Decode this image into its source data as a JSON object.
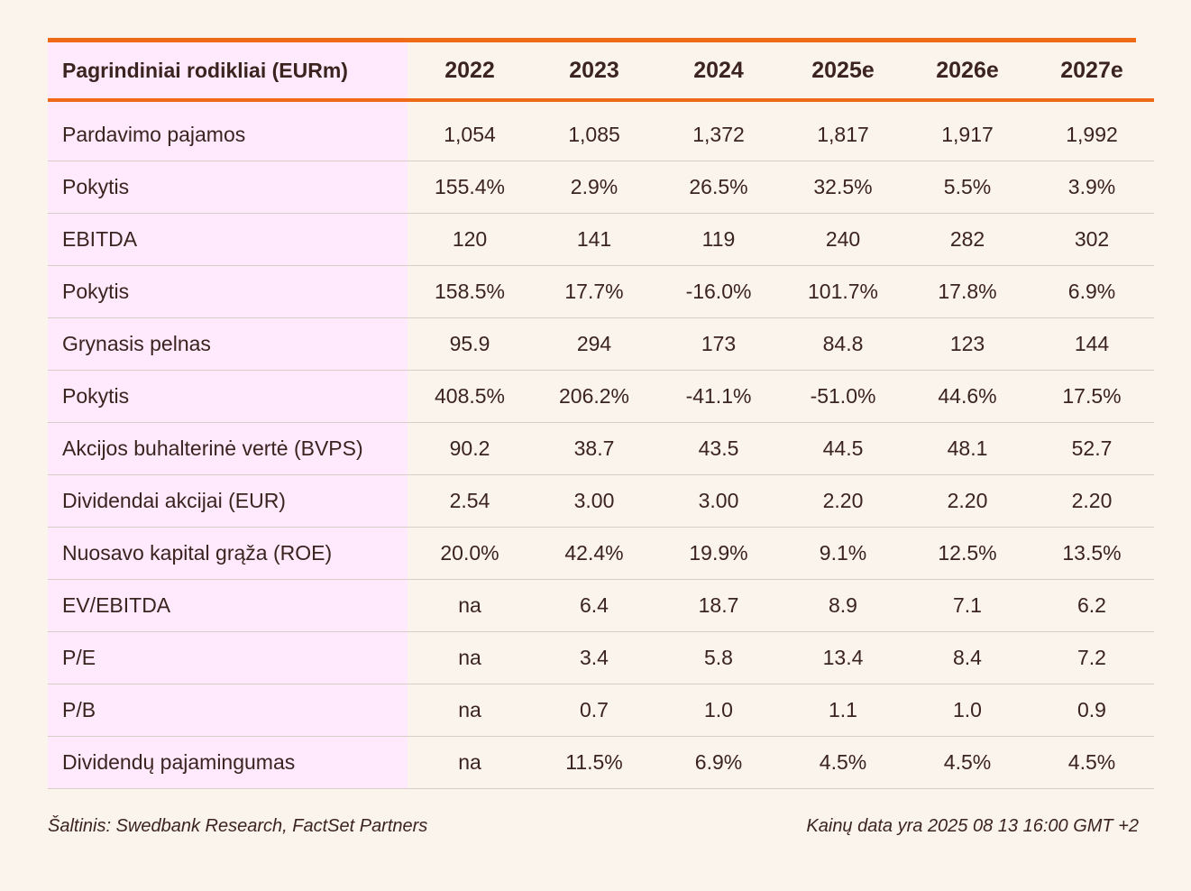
{
  "table": {
    "header_label": "Pagrindiniai rodikliai (EURm)",
    "years": [
      "2022",
      "2023",
      "2024",
      "2025e",
      "2026e",
      "2027e"
    ],
    "rows": [
      {
        "label": "Pardavimo pajamos",
        "values": [
          "1,054",
          "1,085",
          "1,372",
          "1,817",
          "1,917",
          "1,992"
        ]
      },
      {
        "label": "Pokytis",
        "values": [
          "155.4%",
          "2.9%",
          "26.5%",
          "32.5%",
          "5.5%",
          "3.9%"
        ]
      },
      {
        "label": "EBITDA",
        "values": [
          "120",
          "141",
          "119",
          "240",
          "282",
          "302"
        ]
      },
      {
        "label": "Pokytis",
        "values": [
          "158.5%",
          "17.7%",
          "-16.0%",
          "101.7%",
          "17.8%",
          "6.9%"
        ]
      },
      {
        "label": "Grynasis pelnas",
        "values": [
          "95.9",
          "294",
          "173",
          "84.8",
          "123",
          "144"
        ]
      },
      {
        "label": "Pokytis",
        "values": [
          "408.5%",
          "206.2%",
          "-41.1%",
          "-51.0%",
          "44.6%",
          "17.5%"
        ]
      },
      {
        "label": "Akcijos buhalterinė vertė (BVPS)",
        "values": [
          "90.2",
          "38.7",
          "43.5",
          "44.5",
          "48.1",
          "52.7"
        ]
      },
      {
        "label": "Dividendai akcijai (EUR)",
        "values": [
          "2.54",
          "3.00",
          "3.00",
          "2.20",
          "2.20",
          "2.20"
        ]
      },
      {
        "label": "Nuosavo kapital grąža (ROE)",
        "values": [
          "20.0%",
          "42.4%",
          "19.9%",
          "9.1%",
          "12.5%",
          "13.5%"
        ]
      },
      {
        "label": "EV/EBITDA",
        "values": [
          "na",
          "6.4",
          "18.7",
          "8.9",
          "7.1",
          "6.2"
        ]
      },
      {
        "label": "P/E",
        "values": [
          "na",
          "3.4",
          "5.8",
          "13.4",
          "8.4",
          "7.2"
        ]
      },
      {
        "label": "P/B",
        "values": [
          "na",
          "0.7",
          "1.0",
          "1.1",
          "1.0",
          "0.9"
        ]
      },
      {
        "label": "Dividendų pajamingumas",
        "values": [
          "na",
          "11.5%",
          "6.9%",
          "4.5%",
          "4.5%",
          "4.5%"
        ]
      }
    ]
  },
  "footer": {
    "source": "Šaltinis: Swedbank Research, FactSet Partners",
    "price_date": "Kainų data yra 2025 08 13 16:00 GMT +2"
  },
  "colors": {
    "accent": "#ee6a16",
    "label_bg": "#feeafc",
    "page_bg": "#fbf4ec",
    "text": "#3b2320"
  }
}
